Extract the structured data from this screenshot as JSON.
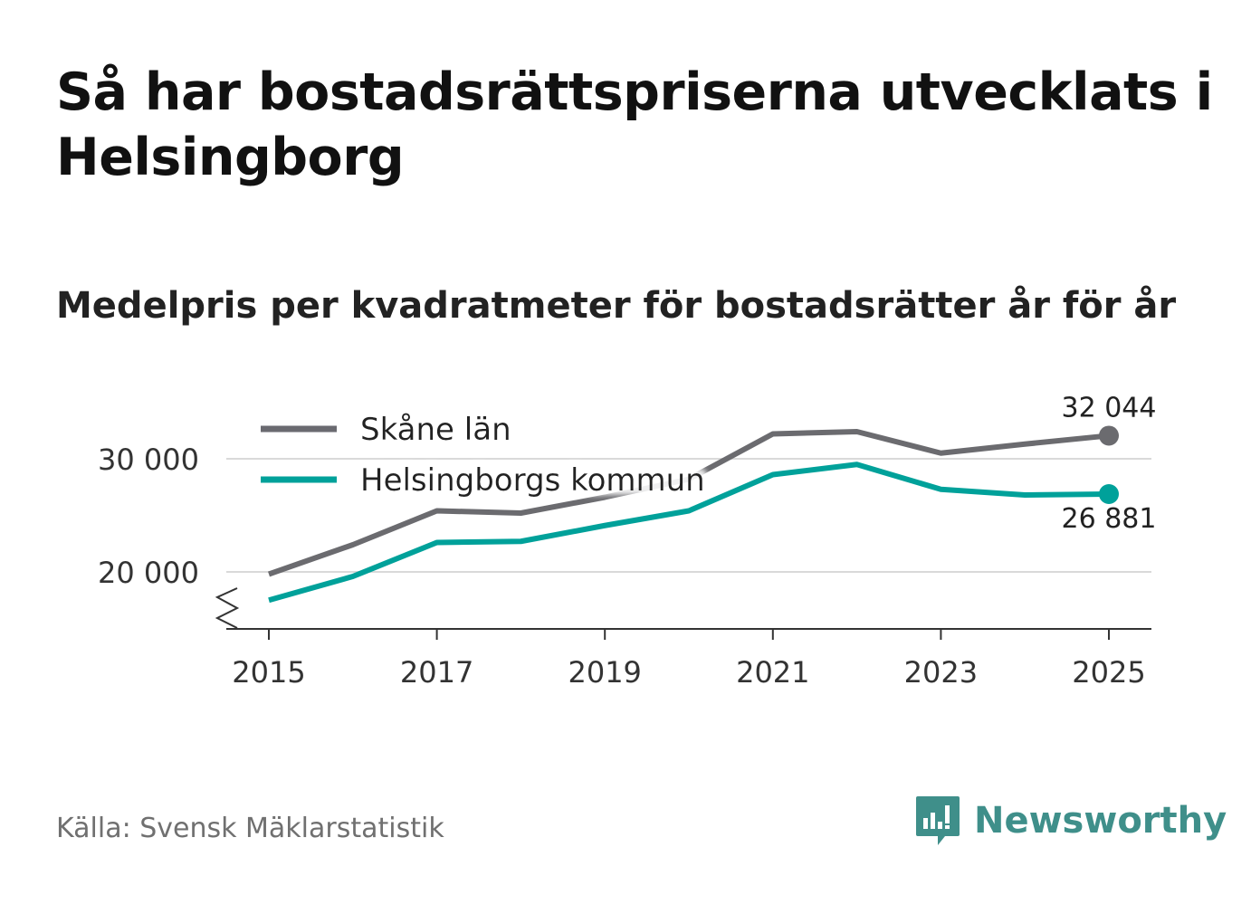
{
  "title": "Så har bostadsrättspriserna utvecklats i Helsingborg",
  "subtitle": "Medelpris per kvadratmeter för bostadsrätter år för år",
  "source": "Källa: Svensk Mäklarstatistik",
  "brand": {
    "name": "Newsworthy",
    "icon": "newsworthy-logo-icon",
    "color": "#3f8f8a"
  },
  "chart_data": {
    "type": "line",
    "title": "Medelpris per kvadratmeter för bostadsrätter år för år",
    "xlabel": "",
    "ylabel": "",
    "x": [
      2015,
      2016,
      2017,
      2018,
      2019,
      2020,
      2021,
      2022,
      2023,
      2024,
      2025
    ],
    "xticks": [
      2015,
      2017,
      2019,
      2021,
      2023,
      2025
    ],
    "xtick_labels": [
      "2015",
      "2017",
      "2019",
      "2021",
      "2023",
      "2025"
    ],
    "yticks": [
      20000,
      30000
    ],
    "ytick_labels": [
      "20 000",
      "30 000"
    ],
    "ylim": [
      15000,
      34000
    ],
    "grid": true,
    "axis_break": true,
    "legend_position": "top-left",
    "series": [
      {
        "name": "Skåne län",
        "color": "#6b6b6f",
        "values": [
          19800,
          22400,
          25400,
          25200,
          26600,
          28200,
          32200,
          32400,
          30500,
          31300,
          32044
        ],
        "end_label": "32 044",
        "end_label_position": "above"
      },
      {
        "name": "Helsingborgs kommun",
        "color": "#00a19a",
        "values": [
          17500,
          19600,
          22600,
          22700,
          24100,
          25400,
          28600,
          29500,
          27300,
          26800,
          26881
        ],
        "end_label": "26 881",
        "end_label_position": "below"
      }
    ]
  }
}
